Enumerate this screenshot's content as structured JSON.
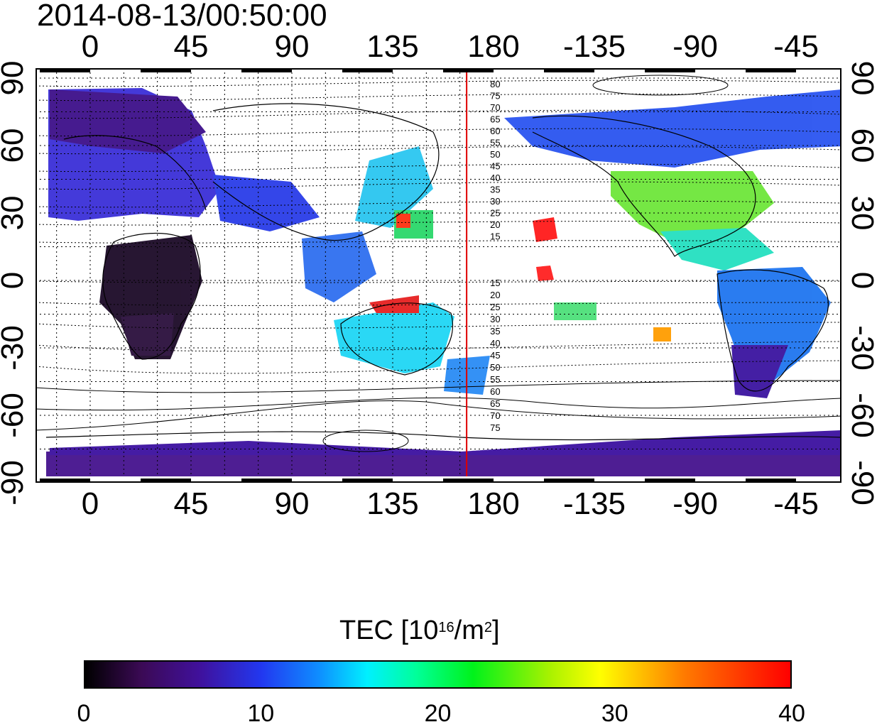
{
  "title": "2014-08-13/00:50:00",
  "map": {
    "lon_ticks": [
      "0",
      "45",
      "90",
      "135",
      "180",
      "-135",
      "-90",
      "-45"
    ],
    "lat_ticks": [
      "90",
      "60",
      "30",
      "0",
      "-30",
      "-60",
      "-90"
    ],
    "contour_labels_north": [
      "80",
      "75",
      "70",
      "65",
      "60",
      "55",
      "50",
      "45",
      "40",
      "35",
      "30",
      "25",
      "20",
      "15"
    ],
    "contour_labels_south": [
      "15",
      "20",
      "25",
      "30",
      "35",
      "40",
      "45",
      "50",
      "55",
      "60",
      "65",
      "70",
      "75"
    ],
    "meridian_line_color": "#e00000",
    "meridian_line_lon": 168
  },
  "colorbar": {
    "title_main": "TEC  [10",
    "title_sup1": "16",
    "title_mid": "/m",
    "title_sup2": "2",
    "title_end": "]",
    "ticks": [
      "0",
      "10",
      "20",
      "30",
      "40"
    ],
    "range": [
      0,
      40
    ],
    "colors": [
      "#000000",
      "#3b0a55",
      "#2238f0",
      "#00f0ff",
      "#00f21b",
      "#ffff00",
      "#ff0000"
    ]
  }
}
